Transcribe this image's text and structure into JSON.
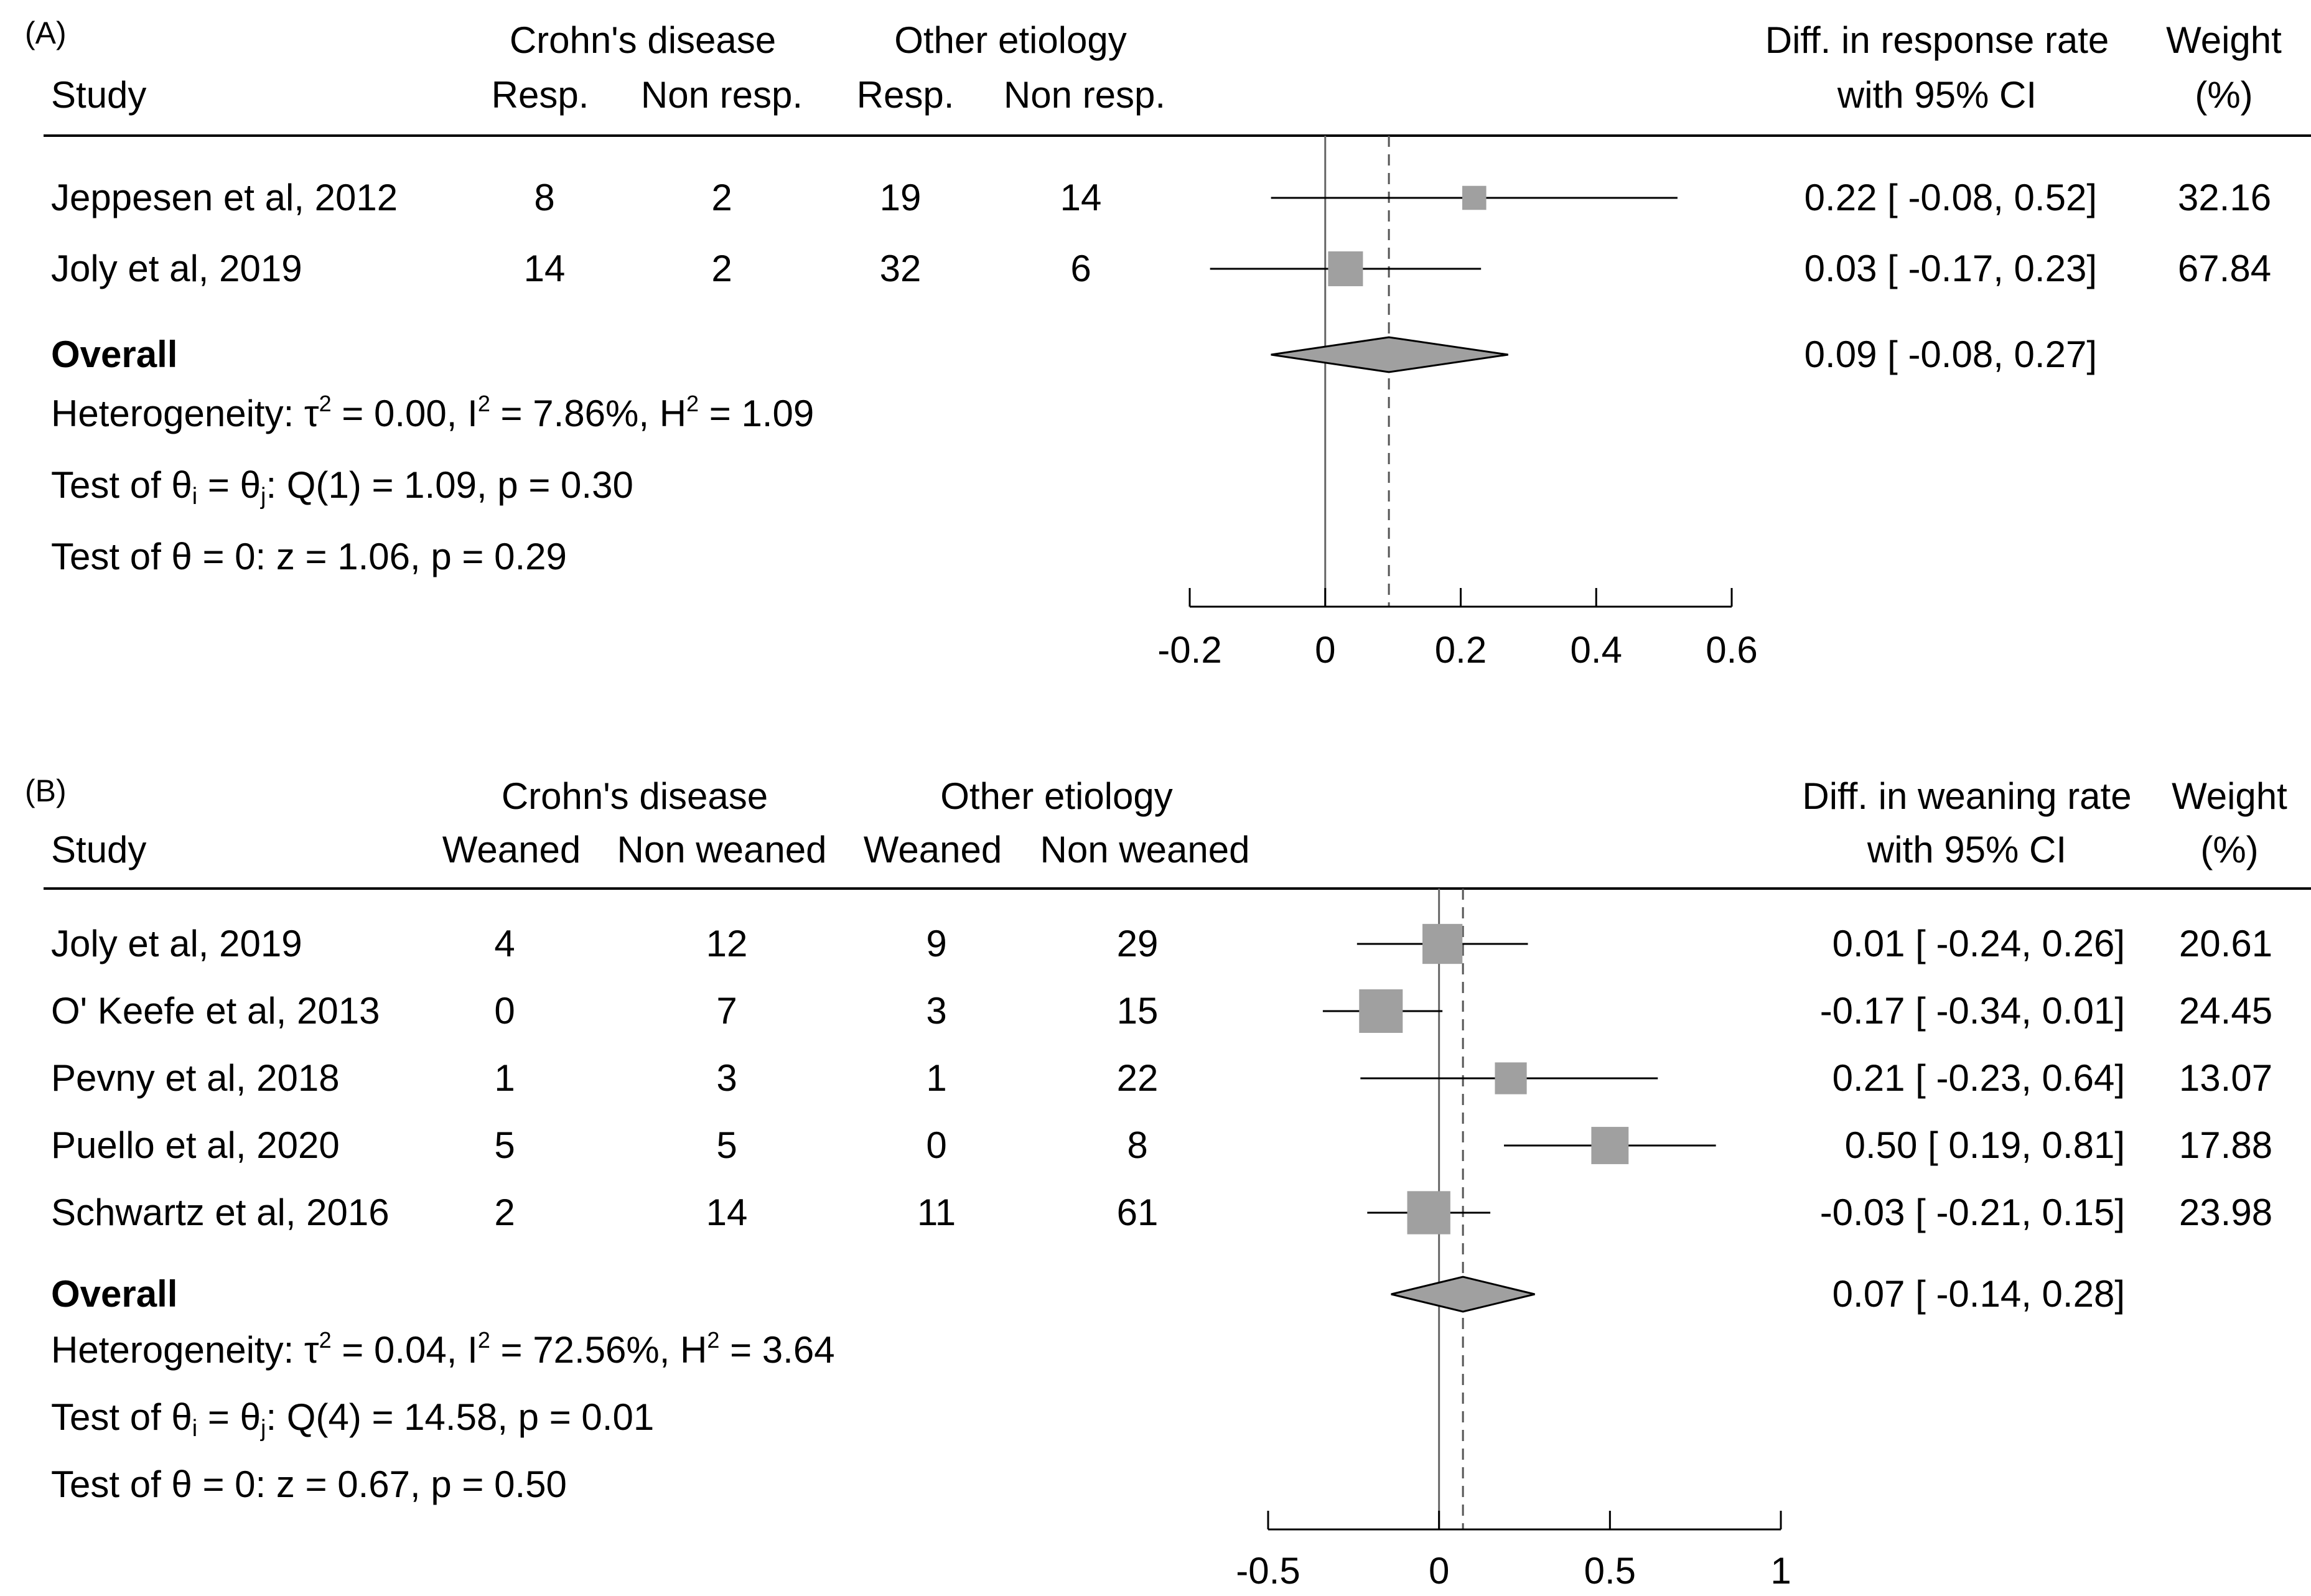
{
  "chart_data": [
    {
      "type": "forest",
      "panel_label": "(A)",
      "columns": {
        "study": "Study",
        "group1": "Crohn's disease",
        "group2": "Other etiology",
        "g1_col1": "Resp.",
        "g1_col2": "Non resp.",
        "g2_col1": "Resp.",
        "g2_col2": "Non resp.",
        "effect_line1": "Diff. in response rate",
        "effect_line2": "with 95% CI",
        "weight_line1": "Weight",
        "weight_line2": "(%)"
      },
      "studies": [
        {
          "name": "Jeppesen et al, 2012",
          "g1a": "8",
          "g1b": "2",
          "g2a": "19",
          "g2b": "14",
          "estimate": 0.22,
          "lower": -0.08,
          "upper": 0.52,
          "ci_text": "0.22 [ -0.08,  0.52]",
          "weight": 32.16,
          "weight_text": "32.16"
        },
        {
          "name": "Joly et al, 2019",
          "g1a": "14",
          "g1b": "2",
          "g2a": "32",
          "g2b": "6",
          "estimate": 0.03,
          "lower": -0.17,
          "upper": 0.23,
          "ci_text": "0.03 [ -0.17,  0.23]",
          "weight": 67.84,
          "weight_text": "67.84"
        }
      ],
      "overall": {
        "label": "Overall",
        "estimate": 0.094,
        "lower": -0.08,
        "upper": 0.27,
        "ci_text": "0.09 [ -0.08,  0.27]"
      },
      "stats": [
        {
          "id": "het",
          "prefix": "Heterogeneity: τ",
          "tau2": "2",
          "mid1": " = 0.00, I",
          "i2": "2",
          "mid2": " = 7.86%, H",
          "h2": "2",
          "end": " = 1.09"
        },
        {
          "id": "test_q",
          "t1": "Test of θ",
          "s1": "i",
          "t2": " = θ",
          "s2": "j",
          "t3": ": Q(1) = 1.09, p = 0.30"
        },
        {
          "id": "test_z",
          "text": "Test of θ = 0: z = 1.06, p = 0.29"
        }
      ],
      "axis": {
        "min": -0.2,
        "max": 0.6,
        "ticks": [
          -0.2,
          0,
          0.2,
          0.4,
          0.6
        ],
        "tick_labels": [
          "-0.2",
          "0",
          "0.2",
          "0.4",
          "0.6"
        ]
      },
      "reference_line": 0,
      "overall_line": 0.094
    },
    {
      "type": "forest",
      "panel_label": "(B)",
      "columns": {
        "study": "Study",
        "group1": "Crohn's disease",
        "group2": "Other etiology",
        "g1_col1": "Weaned",
        "g1_col2": "Non weaned",
        "g2_col1": "Weaned",
        "g2_col2": "Non weaned",
        "effect_line1": "Diff. in weaning rate",
        "effect_line2": "with 95% CI",
        "weight_line1": "Weight",
        "weight_line2": "(%)"
      },
      "studies": [
        {
          "name": "Joly et al, 2019",
          "g1a": "4",
          "g1b": "12",
          "g2a": "9",
          "g2b": "29",
          "estimate": 0.01,
          "lower": -0.24,
          "upper": 0.26,
          "ci_text": "0.01 [ -0.24,  0.26]",
          "weight": 20.61,
          "weight_text": "20.61"
        },
        {
          "name": "O' Keefe et al, 2013",
          "g1a": "0",
          "g1b": "7",
          "g2a": "3",
          "g2b": "15",
          "estimate": -0.17,
          "lower": -0.34,
          "upper": 0.01,
          "ci_text": "-0.17 [ -0.34,  0.01]",
          "weight": 24.45,
          "weight_text": "24.45"
        },
        {
          "name": "Pevny et al, 2018",
          "g1a": "1",
          "g1b": "3",
          "g2a": "1",
          "g2b": "22",
          "estimate": 0.21,
          "lower": -0.23,
          "upper": 0.64,
          "ci_text": "0.21 [ -0.23,  0.64]",
          "weight": 13.07,
          "weight_text": "13.07"
        },
        {
          "name": "Puello et al, 2020",
          "g1a": "5",
          "g1b": "5",
          "g2a": "0",
          "g2b": "8",
          "estimate": 0.5,
          "lower": 0.19,
          "upper": 0.81,
          "ci_text": "0.50 [  0.19,  0.81]",
          "weight": 17.88,
          "weight_text": "17.88"
        },
        {
          "name": "Schwartz et al, 2016",
          "g1a": "2",
          "g1b": "14",
          "g2a": "11",
          "g2b": "61",
          "estimate": -0.03,
          "lower": -0.21,
          "upper": 0.15,
          "ci_text": "-0.03 [ -0.21,  0.15]",
          "weight": 23.98,
          "weight_text": "23.98"
        }
      ],
      "overall": {
        "label": "Overall",
        "estimate": 0.07,
        "lower": -0.14,
        "upper": 0.28,
        "ci_text": "0.07 [ -0.14,  0.28]"
      },
      "stats": [
        {
          "id": "het",
          "prefix": "Heterogeneity: τ",
          "tau2": "2",
          "mid1": " = 0.04, I",
          "i2": "2",
          "mid2": " = 72.56%, H",
          "h2": "2",
          "end": " = 3.64"
        },
        {
          "id": "test_q",
          "t1": "Test of θ",
          "s1": "i",
          "t2": " = θ",
          "s2": "j",
          "t3": ": Q(4) = 14.58, p = 0.01"
        },
        {
          "id": "test_z",
          "text": "Test of θ = 0: z = 0.67, p = 0.50"
        }
      ],
      "axis": {
        "min": -0.5,
        "max": 1,
        "ticks": [
          -0.5,
          0,
          0.5,
          1
        ],
        "tick_labels": [
          "-0.5",
          "0",
          "0.5",
          "1"
        ]
      },
      "reference_line": 0,
      "overall_line": 0.07
    }
  ]
}
